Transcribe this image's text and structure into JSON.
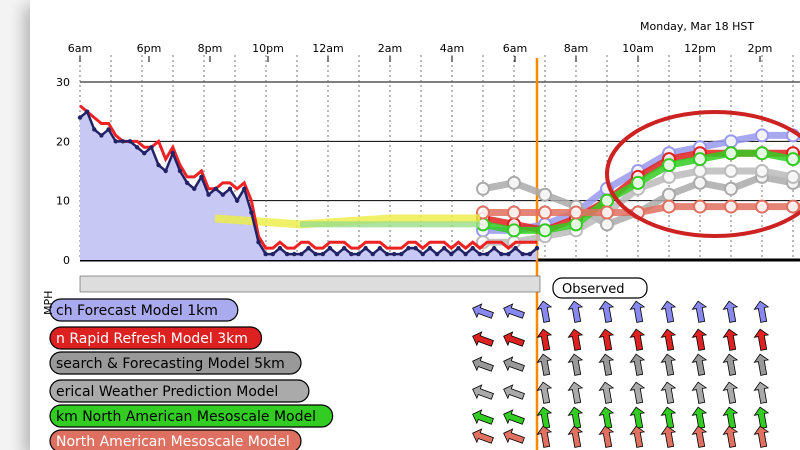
{
  "header": {
    "date_label": "Monday, Mar 18 HST"
  },
  "chart_data": {
    "type": "line",
    "ylabel": "MPH",
    "ylim": [
      0,
      30
    ],
    "yticks": [
      0,
      10,
      20,
      30
    ],
    "time_ticks": [
      "6am",
      "6pm",
      "8pm",
      "10pm",
      "12am",
      "2am",
      "4am",
      "6am",
      "8am",
      "10am",
      "12pm",
      "2pm"
    ],
    "now_marker": "Observed",
    "observed": {
      "name": "Observed",
      "wind_speed": [
        24,
        25,
        22,
        21,
        22,
        20,
        20,
        20,
        19,
        18,
        19,
        16,
        15,
        18,
        15,
        13,
        12,
        14,
        11,
        12,
        11,
        12,
        10,
        12,
        8,
        3,
        1,
        1,
        2,
        1,
        1,
        1,
        2,
        1,
        1,
        2,
        1,
        2,
        1,
        1,
        2,
        1,
        2,
        1,
        1,
        1,
        2,
        2,
        1,
        2,
        1,
        2,
        1,
        2,
        1,
        2,
        1,
        1,
        2,
        1,
        1,
        2,
        1,
        1,
        2
      ],
      "wind_gust": [
        26,
        25,
        24,
        23,
        23,
        21,
        20,
        20,
        20,
        19,
        19,
        20,
        17,
        19,
        16,
        14,
        14,
        15,
        12,
        12,
        13,
        13,
        12,
        13,
        10,
        4,
        2,
        2,
        3,
        2,
        2,
        3,
        3,
        2,
        2,
        3,
        3,
        3,
        2,
        2,
        3,
        3,
        3,
        2,
        2,
        2,
        3,
        3,
        2,
        3,
        3,
        3,
        2,
        3,
        2,
        3,
        2,
        3,
        3,
        3,
        2,
        3,
        3,
        3,
        3
      ]
    },
    "series": [
      {
        "name": "ch Forecast Model  1km",
        "color": "#9999ee",
        "values": [
          5,
          5,
          6,
          8,
          12,
          15,
          18,
          19,
          20,
          21,
          21,
          20
        ]
      },
      {
        "name": "n Rapid Refresh Model 3km",
        "color": "#e02020",
        "values": [
          7,
          6,
          5,
          7,
          10,
          14,
          17,
          18,
          18,
          18,
          18,
          17
        ]
      },
      {
        "name": "search & Forecasting Model 5km",
        "color": "#aaaaaa",
        "values": [
          12,
          13,
          11,
          9,
          6,
          8,
          11,
          13,
          12,
          14,
          13,
          12
        ]
      },
      {
        "name": "erical Weather Prediction Model",
        "color": "#bbbbbb",
        "values": [
          3,
          3,
          4,
          5,
          8,
          12,
          14,
          15,
          15,
          15,
          14,
          14
        ]
      },
      {
        "name": "km  North American Mesoscale Model",
        "color": "#33cc22",
        "values": [
          6,
          5,
          5,
          6,
          10,
          13,
          16,
          17,
          18,
          18,
          17,
          17
        ]
      },
      {
        "name": "North American Mesoscale Model",
        "color": "#e07060",
        "values": [
          8,
          8,
          8,
          8,
          8,
          8,
          9,
          9,
          9,
          9,
          9,
          9
        ]
      }
    ],
    "annotation": "red ellipse around 10am–2pm forecasts"
  },
  "legend": {
    "items": [
      {
        "label": "ch Forecast Model  1km",
        "bg": "#aaaaee"
      },
      {
        "label": "n Rapid Refresh Model 3km",
        "bg": "#dd2020"
      },
      {
        "label": "search & Forecasting Model 5km",
        "bg": "#999999"
      },
      {
        "label": "erical Weather Prediction Model",
        "bg": "#aaaaaa"
      },
      {
        "label": "km  North American Mesoscale Model",
        "bg": "#33cc22"
      },
      {
        "label": "North American Mesoscale Model",
        "bg": "#dd7060"
      }
    ]
  }
}
